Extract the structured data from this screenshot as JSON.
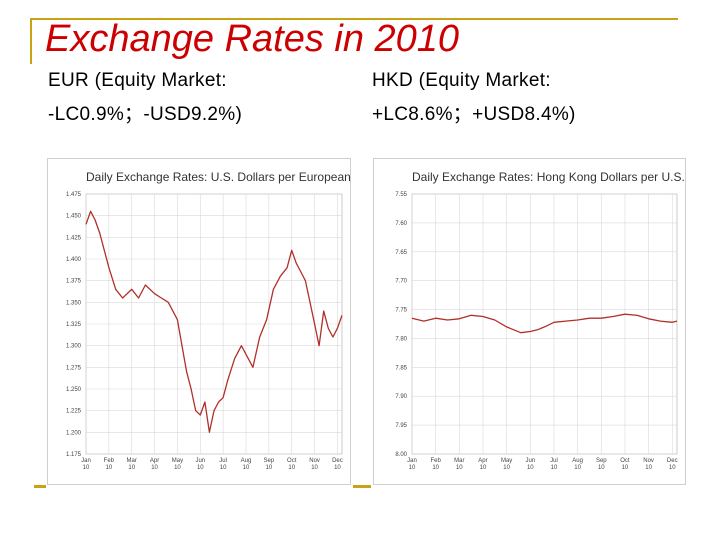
{
  "slide": {
    "title": "Exchange Rates in 2010",
    "left_heading": [
      "EUR (Equity Market:",
      "-LC0.9%；-USD9.2%)"
    ],
    "right_heading": [
      "HKD (Equity Market:",
      "+LC8.6%；+USD8.4%)"
    ]
  },
  "colors": {
    "title": "#cc0000",
    "accent_rule": "#c8a415",
    "series_line": "#b0302a",
    "grid": "#d9d9d9"
  },
  "chart_data": [
    {
      "type": "line",
      "title": "Daily Exchange Rates: U.S. Dollars per European Euro",
      "xlabel": "",
      "ylabel": "",
      "ylim": [
        1.175,
        1.475
      ],
      "y_ticks": [
        "1.475",
        "1.450",
        "1.425",
        "1.400",
        "1.375",
        "1.350",
        "1.325",
        "1.300",
        "1.275",
        "1.250",
        "1.225",
        "1.200",
        "1.175"
      ],
      "x_ticks": [
        [
          "Jan",
          "10"
        ],
        [
          "Feb",
          "10"
        ],
        [
          "Mar",
          "10"
        ],
        [
          "Apr",
          "10"
        ],
        [
          "May",
          "10"
        ],
        [
          "Jun",
          "10"
        ],
        [
          "Jul",
          "10"
        ],
        [
          "Aug",
          "10"
        ],
        [
          "Sep",
          "10"
        ],
        [
          "Oct",
          "10"
        ],
        [
          "Nov",
          "10"
        ],
        [
          "Dec",
          "10"
        ]
      ],
      "series": [
        {
          "name": "USD per EUR",
          "x": [
            0,
            0.2,
            0.4,
            0.6,
            0.8,
            1.0,
            1.3,
            1.6,
            2.0,
            2.3,
            2.6,
            3.0,
            3.3,
            3.6,
            4.0,
            4.2,
            4.4,
            4.6,
            4.8,
            5.0,
            5.2,
            5.4,
            5.6,
            5.8,
            6.0,
            6.2,
            6.5,
            6.8,
            7.0,
            7.3,
            7.6,
            7.9,
            8.2,
            8.5,
            8.8,
            9.0,
            9.2,
            9.4,
            9.6,
            9.8,
            10.0,
            10.2,
            10.4,
            10.6,
            10.8,
            11.0,
            11.2
          ],
          "values": [
            1.44,
            1.455,
            1.445,
            1.43,
            1.41,
            1.39,
            1.365,
            1.355,
            1.365,
            1.355,
            1.37,
            1.36,
            1.355,
            1.35,
            1.33,
            1.3,
            1.27,
            1.25,
            1.225,
            1.22,
            1.235,
            1.2,
            1.225,
            1.235,
            1.24,
            1.26,
            1.285,
            1.3,
            1.29,
            1.275,
            1.31,
            1.33,
            1.365,
            1.38,
            1.39,
            1.41,
            1.395,
            1.385,
            1.375,
            1.35,
            1.325,
            1.3,
            1.34,
            1.32,
            1.31,
            1.32,
            1.335
          ]
        }
      ]
    },
    {
      "type": "line",
      "title": "Daily Exchange Rates: Hong Kong Dollars per U.S. Dollar",
      "xlabel": "",
      "ylabel": "",
      "ylim": [
        7.55,
        8.0
      ],
      "y_ticks": [
        "7.55",
        "7.60",
        "7.65",
        "7.70",
        "7.75",
        "7.80",
        "7.85",
        "7.90",
        "7.95",
        "8.00"
      ],
      "x_ticks": [
        [
          "Jan",
          "10"
        ],
        [
          "Feb",
          "10"
        ],
        [
          "Mar",
          "10"
        ],
        [
          "Apr",
          "10"
        ],
        [
          "May",
          "10"
        ],
        [
          "Jun",
          "10"
        ],
        [
          "Jul",
          "10"
        ],
        [
          "Aug",
          "10"
        ],
        [
          "Sep",
          "10"
        ],
        [
          "Oct",
          "10"
        ],
        [
          "Nov",
          "10"
        ],
        [
          "Dec",
          "10"
        ]
      ],
      "series": [
        {
          "name": "HKD per USD",
          "x": [
            0,
            0.5,
            1.0,
            1.5,
            2.0,
            2.5,
            3.0,
            3.5,
            4.0,
            4.3,
            4.6,
            5.0,
            5.3,
            5.6,
            6.0,
            6.5,
            7.0,
            7.5,
            8.0,
            8.5,
            9.0,
            9.5,
            10.0,
            10.5,
            11.0,
            11.2
          ],
          "values": [
            7.765,
            7.77,
            7.765,
            7.768,
            7.766,
            7.76,
            7.762,
            7.768,
            7.78,
            7.785,
            7.79,
            7.788,
            7.785,
            7.78,
            7.772,
            7.77,
            7.768,
            7.765,
            7.765,
            7.762,
            7.758,
            7.76,
            7.766,
            7.77,
            7.772,
            7.77
          ]
        }
      ]
    }
  ]
}
